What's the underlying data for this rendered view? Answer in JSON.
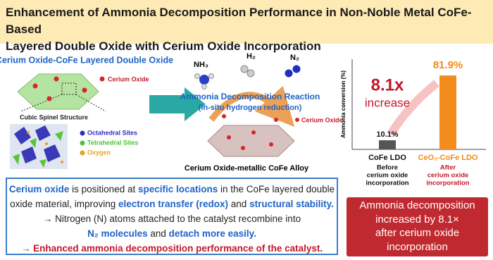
{
  "header": {
    "title_line1": "Enhancement of Ammonia Decomposition Performance in Non-Noble Metal CoFe-Based",
    "title_line2": "Layered Double Oxide with Cerium Oxide Incorporation"
  },
  "left_panel": {
    "title": "Cerium Oxide-CoFe Layered Double Oxide",
    "cerium_label": "Cerium Oxide",
    "structure_label": "Cubic Spinel Structure",
    "legend": [
      "Octahedral Sites",
      "Tetrahedral Sites",
      "Oxygen"
    ]
  },
  "reaction": {
    "molecules": [
      "NH₃",
      "H₂",
      "N₂"
    ],
    "title": "Ammonia Decomposition Reaction",
    "subtitle": "(in-situ hydrogen reduction)",
    "cerium_label": "Cerium Oxide",
    "product_label": "Cerium Oxide-metallic CoFe Alloy"
  },
  "chart_data": {
    "type": "bar",
    "y_label": "Ammonia conversion (%)",
    "categories": [
      "CoFe LDO",
      "CeO₂-CoFe LDO"
    ],
    "category_notes": [
      [
        "Before",
        "cerium oxide",
        "incorporation"
      ],
      [
        "After",
        "cerium oxide",
        "incorporation"
      ]
    ],
    "values": [
      10.1,
      81.9
    ],
    "value_labels": [
      "10.1%",
      "81.9%"
    ],
    "colors": [
      "#555555",
      "#f28c1c"
    ],
    "ylim": [
      0,
      100
    ],
    "annotation": "8.1x",
    "annotation_sub": "increase"
  },
  "summary": {
    "lines": [
      [
        "Cerium oxide",
        " is positioned at ",
        "specific locations",
        " in the CoFe layered double"
      ],
      [
        "oxide material, improving ",
        "electron transfer (redox)",
        " and ",
        "structural stability."
      ],
      [
        "→  Nitrogen (N) atoms attached to the catalyst recombine into"
      ],
      [
        "N₂ molecules",
        " and ",
        "detach more easily."
      ],
      [
        "→ Enhanced ammonia decomposition performance of the catalyst."
      ]
    ]
  },
  "result_box": {
    "lines": [
      "Ammonia decomposition",
      "increased by 8.1×",
      "after cerium oxide",
      "incorporation"
    ]
  }
}
